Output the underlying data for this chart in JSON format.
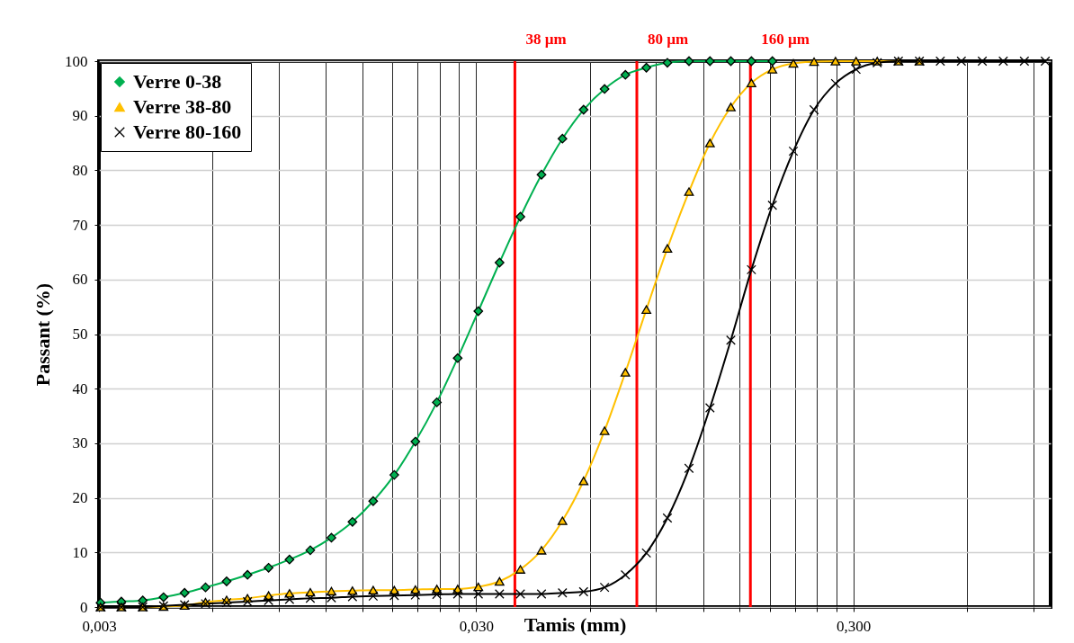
{
  "chart_data": {
    "type": "line",
    "xlabel": "Tamis (mm)",
    "ylabel": "Passant (%)",
    "log": "x",
    "x": [
      0.00303,
      0.00344,
      0.00392,
      0.00445,
      0.00506,
      0.00575,
      0.00654,
      0.00743,
      0.00845,
      0.0096,
      0.0109,
      0.0124,
      0.0141,
      0.016,
      0.0182,
      0.0207,
      0.0236,
      0.0268,
      0.0304,
      0.0346,
      0.0393,
      0.0447,
      0.0508,
      0.0578,
      0.0657,
      0.0746,
      0.0848,
      0.0964,
      0.11,
      0.125,
      0.142,
      0.161,
      0.183,
      0.208,
      0.236,
      0.269,
      0.305,
      0.347,
      0.395,
      0.449,
      0.51,
      0.58,
      0.659,
      0.749,
      0.852,
      0.968
    ],
    "series": [
      {
        "name": "Verre 0-38",
        "color": "#00b050",
        "marker": "diamond",
        "values": [
          0.8,
          1.0,
          1.2,
          1.8,
          2.6,
          3.6,
          4.7,
          5.9,
          7.2,
          8.7,
          10.4,
          12.7,
          15.6,
          19.4,
          24.2,
          30.3,
          37.5,
          45.6,
          54.2,
          63.1,
          71.5,
          79.2,
          85.8,
          91.1,
          94.9,
          97.5,
          98.8,
          99.7,
          100,
          100,
          100,
          100,
          100,
          null,
          null,
          null,
          null,
          null,
          null,
          null,
          null,
          null,
          null,
          null,
          null,
          null
        ]
      },
      {
        "name": "Verre 38-80",
        "color": "#ffc000",
        "marker": "triangle",
        "values": [
          0,
          0,
          0,
          0.1,
          0.3,
          0.9,
          1.3,
          1.6,
          2.1,
          2.5,
          2.7,
          2.9,
          3.0,
          3.1,
          3.1,
          3.2,
          3.3,
          3.3,
          3.7,
          4.7,
          6.9,
          10.4,
          15.8,
          23.1,
          32.3,
          43.0,
          54.5,
          65.7,
          76.1,
          85.0,
          91.6,
          96.0,
          98.5,
          99.6,
          99.9,
          100,
          100,
          100,
          100,
          100,
          null,
          null,
          null,
          null,
          null,
          null
        ]
      },
      {
        "name": "Verre 80-160",
        "color": "#000000",
        "marker": "cross",
        "values": [
          0,
          0,
          0,
          0.2,
          0.4,
          0.6,
          0.8,
          1.0,
          1.2,
          1.4,
          1.6,
          1.7,
          1.9,
          2.0,
          2.1,
          2.2,
          2.3,
          2.4,
          2.4,
          2.4,
          2.4,
          2.4,
          2.6,
          2.8,
          3.6,
          5.9,
          9.9,
          16.3,
          25.4,
          36.5,
          48.9,
          61.8,
          73.6,
          83.5,
          91.1,
          95.9,
          98.5,
          99.7,
          100,
          100,
          100,
          100,
          100,
          100,
          100,
          100
        ]
      }
    ],
    "xlim": [
      0.003,
      1
    ],
    "xticks": [
      {
        "value": 0.003,
        "label": "0,003"
      },
      {
        "value": 0.006,
        "label": null
      },
      {
        "value": 0.009,
        "label": null
      },
      {
        "value": 0.012,
        "label": null
      },
      {
        "value": 0.015,
        "label": null
      },
      {
        "value": 0.018,
        "label": null
      },
      {
        "value": 0.021,
        "label": null
      },
      {
        "value": 0.024,
        "label": null
      },
      {
        "value": 0.027,
        "label": null
      },
      {
        "value": 0.03,
        "label": "0,030"
      },
      {
        "value": 0.06,
        "label": null
      },
      {
        "value": 0.09,
        "label": null
      },
      {
        "value": 0.12,
        "label": null
      },
      {
        "value": 0.15,
        "label": null
      },
      {
        "value": 0.18,
        "label": null
      },
      {
        "value": 0.21,
        "label": null
      },
      {
        "value": 0.24,
        "label": null
      },
      {
        "value": 0.27,
        "label": null
      },
      {
        "value": 0.3,
        "label": "0,300"
      },
      {
        "value": 0.6,
        "label": null
      },
      {
        "value": 0.9,
        "label": null
      }
    ],
    "ylim": [
      0,
      100
    ],
    "yticks": [
      0,
      10,
      20,
      30,
      40,
      50,
      60,
      70,
      80,
      90,
      100
    ],
    "grid": true,
    "legend": "top left",
    "line_style": "solid",
    "ref_lines": [
      {
        "axis": "x",
        "value": 0.038,
        "label": "38 µm",
        "color": "#ff0000"
      },
      {
        "axis": "x",
        "value": 0.08,
        "label": "80 µm",
        "color": "#ff0000"
      },
      {
        "axis": "x",
        "value": 0.16,
        "label": "160 µm",
        "color": "#ff0000"
      }
    ]
  }
}
